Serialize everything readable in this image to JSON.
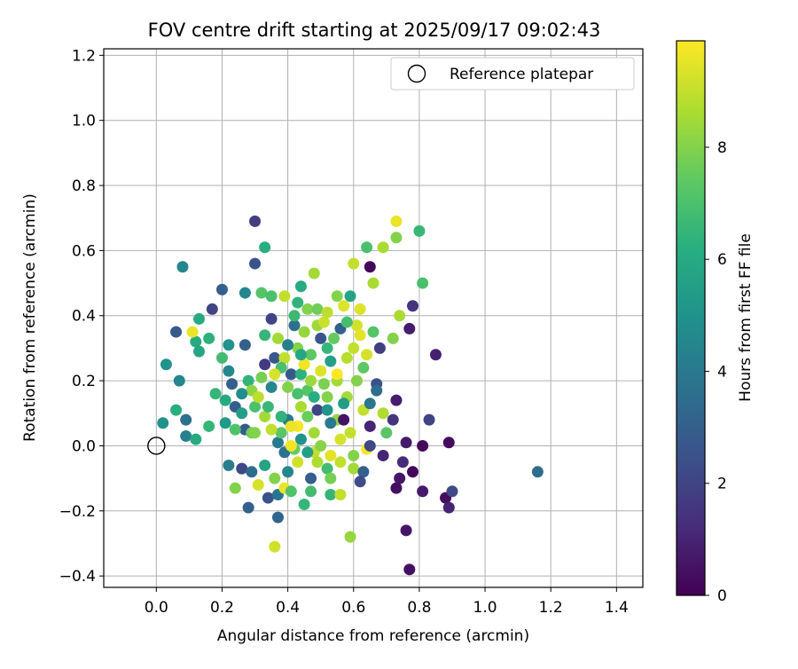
{
  "chart_data": {
    "type": "scatter",
    "title": "FOV centre drift starting at 2025/09/17 09:02:43",
    "xlabel": "Angular distance from reference (arcmin)",
    "ylabel": "Rotation from reference (arcmin)",
    "xlim": [
      -0.16,
      1.48
    ],
    "ylim": [
      -0.435,
      1.22
    ],
    "xticks": [
      0.0,
      0.2,
      0.4,
      0.6,
      0.8,
      1.0,
      1.2,
      1.4
    ],
    "xtick_labels": [
      "0.0",
      "0.2",
      "0.4",
      "0.6",
      "0.8",
      "1.0",
      "1.2",
      "1.4"
    ],
    "yticks": [
      -0.4,
      -0.2,
      0.0,
      0.2,
      0.4,
      0.6,
      0.8,
      1.0,
      1.2
    ],
    "ytick_labels": [
      "−0.4",
      "−0.2",
      "0.0",
      "0.2",
      "0.4",
      "0.6",
      "0.8",
      "1.0",
      "1.2"
    ],
    "grid": true,
    "legend": {
      "placement": "top-right",
      "label": "Reference platepar"
    },
    "reference_point": {
      "x": 0.0,
      "y": 0.0
    },
    "colorbar": {
      "label": "Hours from first FF file",
      "colormap": "viridis",
      "range": [
        0,
        9.9
      ],
      "ticks": [
        0,
        2,
        4,
        6,
        8
      ],
      "tick_labels": [
        "0",
        "2",
        "4",
        "6",
        "8"
      ]
    },
    "points": [
      {
        "x": 0.3,
        "y": 0.69,
        "t": 1.8
      },
      {
        "x": 0.73,
        "y": 0.69,
        "t": 9.6
      },
      {
        "x": 0.33,
        "y": 0.61,
        "t": 6.2
      },
      {
        "x": 0.64,
        "y": 0.61,
        "t": 7.0
      },
      {
        "x": 0.8,
        "y": 0.66,
        "t": 6.6
      },
      {
        "x": 0.69,
        "y": 0.61,
        "t": 8.6
      },
      {
        "x": 0.73,
        "y": 0.64,
        "t": 8.0
      },
      {
        "x": 0.08,
        "y": 0.55,
        "t": 4.5
      },
      {
        "x": 0.3,
        "y": 0.56,
        "t": 2.5
      },
      {
        "x": 0.65,
        "y": 0.55,
        "t": 0.2
      },
      {
        "x": 0.48,
        "y": 0.53,
        "t": 8.5
      },
      {
        "x": 0.6,
        "y": 0.56,
        "t": 9.0
      },
      {
        "x": 0.2,
        "y": 0.48,
        "t": 3.0
      },
      {
        "x": 0.27,
        "y": 0.47,
        "t": 4.5
      },
      {
        "x": 0.32,
        "y": 0.47,
        "t": 7.2
      },
      {
        "x": 0.35,
        "y": 0.46,
        "t": 7.0
      },
      {
        "x": 0.44,
        "y": 0.49,
        "t": 6.0
      },
      {
        "x": 0.66,
        "y": 0.5,
        "t": 8.6
      },
      {
        "x": 0.81,
        "y": 0.5,
        "t": 7.0
      },
      {
        "x": 0.39,
        "y": 0.46,
        "t": 9.0
      },
      {
        "x": 0.55,
        "y": 0.46,
        "t": 8.0
      },
      {
        "x": 0.13,
        "y": 0.39,
        "t": 6.0
      },
      {
        "x": 0.17,
        "y": 0.42,
        "t": 2.0
      },
      {
        "x": 0.06,
        "y": 0.35,
        "t": 2.8
      },
      {
        "x": 0.35,
        "y": 0.39,
        "t": 2.0
      },
      {
        "x": 0.46,
        "y": 0.42,
        "t": 8.0
      },
      {
        "x": 0.57,
        "y": 0.43,
        "t": 9.4
      },
      {
        "x": 0.78,
        "y": 0.43,
        "t": 1.5
      },
      {
        "x": 0.74,
        "y": 0.4,
        "t": 8.6
      },
      {
        "x": 0.12,
        "y": 0.32,
        "t": 6.0
      },
      {
        "x": 0.16,
        "y": 0.33,
        "t": 6.3
      },
      {
        "x": 0.22,
        "y": 0.31,
        "t": 5.0
      },
      {
        "x": 0.27,
        "y": 0.31,
        "t": 3.0
      },
      {
        "x": 0.33,
        "y": 0.34,
        "t": 6.5
      },
      {
        "x": 0.37,
        "y": 0.33,
        "t": 8.5
      },
      {
        "x": 0.11,
        "y": 0.35,
        "t": 9.6
      },
      {
        "x": 0.42,
        "y": 0.37,
        "t": 3.6
      },
      {
        "x": 0.49,
        "y": 0.37,
        "t": 8.4
      },
      {
        "x": 0.56,
        "y": 0.36,
        "t": 3.0
      },
      {
        "x": 0.61,
        "y": 0.37,
        "t": 9.2
      },
      {
        "x": 0.66,
        "y": 0.35,
        "t": 7.2
      },
      {
        "x": 0.77,
        "y": 0.36,
        "t": 0.8
      },
      {
        "x": 0.72,
        "y": 0.33,
        "t": 8.0
      },
      {
        "x": 0.03,
        "y": 0.25,
        "t": 5.0
      },
      {
        "x": 0.13,
        "y": 0.29,
        "t": 5.8
      },
      {
        "x": 0.2,
        "y": 0.27,
        "t": 6.8
      },
      {
        "x": 0.36,
        "y": 0.27,
        "t": 2.7
      },
      {
        "x": 0.39,
        "y": 0.27,
        "t": 9.0
      },
      {
        "x": 0.43,
        "y": 0.3,
        "t": 8.0
      },
      {
        "x": 0.52,
        "y": 0.3,
        "t": 6.5
      },
      {
        "x": 0.6,
        "y": 0.3,
        "t": 9.0
      },
      {
        "x": 0.64,
        "y": 0.28,
        "t": 9.3
      },
      {
        "x": 0.68,
        "y": 0.3,
        "t": 1.8
      },
      {
        "x": 0.85,
        "y": 0.28,
        "t": 0.9
      },
      {
        "x": 0.07,
        "y": 0.2,
        "t": 4.5
      },
      {
        "x": 0.22,
        "y": 0.23,
        "t": 4.6
      },
      {
        "x": 0.23,
        "y": 0.19,
        "t": 3.0
      },
      {
        "x": 0.28,
        "y": 0.2,
        "t": 6.4
      },
      {
        "x": 0.32,
        "y": 0.21,
        "t": 7.8
      },
      {
        "x": 0.38,
        "y": 0.24,
        "t": 7.0
      },
      {
        "x": 0.41,
        "y": 0.22,
        "t": 2.8
      },
      {
        "x": 0.44,
        "y": 0.22,
        "t": 6.3
      },
      {
        "x": 0.5,
        "y": 0.23,
        "t": 9.4
      },
      {
        "x": 0.55,
        "y": 0.2,
        "t": 8.5
      },
      {
        "x": 0.63,
        "y": 0.24,
        "t": 7.4
      },
      {
        "x": 0.67,
        "y": 0.19,
        "t": 2.4
      },
      {
        "x": 0.18,
        "y": 0.16,
        "t": 6.5
      },
      {
        "x": 0.21,
        "y": 0.14,
        "t": 6.0
      },
      {
        "x": 0.24,
        "y": 0.12,
        "t": 3.0
      },
      {
        "x": 0.29,
        "y": 0.17,
        "t": 8.2
      },
      {
        "x": 0.35,
        "y": 0.18,
        "t": 4.5
      },
      {
        "x": 0.4,
        "y": 0.18,
        "t": 8.0
      },
      {
        "x": 0.46,
        "y": 0.17,
        "t": 7.2
      },
      {
        "x": 0.52,
        "y": 0.15,
        "t": 8.0
      },
      {
        "x": 0.58,
        "y": 0.15,
        "t": 8.5
      },
      {
        "x": 0.67,
        "y": 0.17,
        "t": 3.5
      },
      {
        "x": 0.06,
        "y": 0.11,
        "t": 6.2
      },
      {
        "x": 0.26,
        "y": 0.1,
        "t": 5.5
      },
      {
        "x": 0.3,
        "y": 0.12,
        "t": 7.0
      },
      {
        "x": 0.33,
        "y": 0.09,
        "t": 8.5
      },
      {
        "x": 0.4,
        "y": 0.08,
        "t": 4.0
      },
      {
        "x": 0.43,
        "y": 0.06,
        "t": 9.8
      },
      {
        "x": 0.49,
        "y": 0.11,
        "t": 2.0
      },
      {
        "x": 0.55,
        "y": 0.08,
        "t": 8.2
      },
      {
        "x": 0.57,
        "y": 0.08,
        "t": 0.5
      },
      {
        "x": 0.63,
        "y": 0.11,
        "t": 9.0
      },
      {
        "x": 0.69,
        "y": 0.1,
        "t": 8.7
      },
      {
        "x": 0.73,
        "y": 0.14,
        "t": 0.8
      },
      {
        "x": 0.02,
        "y": 0.07,
        "t": 5.0
      },
      {
        "x": 0.09,
        "y": 0.08,
        "t": 3.6
      },
      {
        "x": 0.16,
        "y": 0.06,
        "t": 6.5
      },
      {
        "x": 0.21,
        "y": 0.07,
        "t": 5.3
      },
      {
        "x": 0.27,
        "y": 0.05,
        "t": 2.8
      },
      {
        "x": 0.29,
        "y": 0.04,
        "t": 7.7
      },
      {
        "x": 0.37,
        "y": 0.01,
        "t": 4.0
      },
      {
        "x": 0.41,
        "y": 0.06,
        "t": 9.6
      },
      {
        "x": 0.48,
        "y": 0.04,
        "t": 8.5
      },
      {
        "x": 0.53,
        "y": 0.07,
        "t": 4.0
      },
      {
        "x": 0.59,
        "y": 0.04,
        "t": 9.0
      },
      {
        "x": 0.65,
        "y": 0.06,
        "t": 1.0
      },
      {
        "x": 0.72,
        "y": 0.08,
        "t": 1.5
      },
      {
        "x": 0.83,
        "y": 0.08,
        "t": 2.0
      },
      {
        "x": 0.09,
        "y": 0.03,
        "t": 4.3
      },
      {
        "x": 0.12,
        "y": 0.02,
        "t": 6.0
      },
      {
        "x": 0.3,
        "y": 0.04,
        "t": 8.0
      },
      {
        "x": 0.39,
        "y": -0.02,
        "t": 3.7
      },
      {
        "x": 0.42,
        "y": -0.01,
        "t": 7.5
      },
      {
        "x": 0.48,
        "y": -0.02,
        "t": 9.0
      },
      {
        "x": 0.53,
        "y": -0.03,
        "t": 9.5
      },
      {
        "x": 0.6,
        "y": -0.03,
        "t": 8.0
      },
      {
        "x": 0.64,
        "y": -0.01,
        "t": 9.8
      },
      {
        "x": 0.69,
        "y": -0.03,
        "t": 1.0
      },
      {
        "x": 0.76,
        "y": 0.01,
        "t": 0.7
      },
      {
        "x": 0.81,
        "y": 0.0,
        "t": 0.2
      },
      {
        "x": 0.89,
        "y": 0.01,
        "t": 0.3
      },
      {
        "x": 0.22,
        "y": -0.06,
        "t": 4.2
      },
      {
        "x": 0.26,
        "y": -0.07,
        "t": 2.2
      },
      {
        "x": 0.29,
        "y": -0.08,
        "t": 3.5
      },
      {
        "x": 0.31,
        "y": -0.12,
        "t": 9.3
      },
      {
        "x": 0.36,
        "y": -0.1,
        "t": 8.0
      },
      {
        "x": 0.4,
        "y": -0.08,
        "t": 4.5
      },
      {
        "x": 0.43,
        "y": -0.05,
        "t": 9.2
      },
      {
        "x": 0.49,
        "y": -0.05,
        "t": 8.7
      },
      {
        "x": 0.52,
        "y": -0.07,
        "t": 6.8
      },
      {
        "x": 0.56,
        "y": -0.05,
        "t": 9.0
      },
      {
        "x": 0.6,
        "y": -0.07,
        "t": 8.5
      },
      {
        "x": 0.63,
        "y": -0.08,
        "t": 3.0
      },
      {
        "x": 0.73,
        "y": -0.13,
        "t": 0.4
      },
      {
        "x": 0.75,
        "y": -0.05,
        "t": 1.2
      },
      {
        "x": 0.78,
        "y": -0.08,
        "t": 0.2
      },
      {
        "x": 0.81,
        "y": -0.14,
        "t": 0.7
      },
      {
        "x": 0.88,
        "y": -0.16,
        "t": 0.3
      },
      {
        "x": 0.24,
        "y": -0.13,
        "t": 8.0
      },
      {
        "x": 0.28,
        "y": -0.19,
        "t": 3.0
      },
      {
        "x": 0.34,
        "y": -0.16,
        "t": 2.5
      },
      {
        "x": 0.37,
        "y": -0.15,
        "t": 3.8
      },
      {
        "x": 0.39,
        "y": -0.13,
        "t": 9.6
      },
      {
        "x": 0.45,
        "y": -0.18,
        "t": 6.5
      },
      {
        "x": 0.47,
        "y": -0.14,
        "t": 6.8
      },
      {
        "x": 0.53,
        "y": -0.15,
        "t": 6.5
      },
      {
        "x": 0.56,
        "y": -0.15,
        "t": 9.0
      },
      {
        "x": 0.62,
        "y": -0.11,
        "t": 2.3
      },
      {
        "x": 0.74,
        "y": -0.1,
        "t": 0.6
      },
      {
        "x": 0.89,
        "y": -0.19,
        "t": 1.0
      },
      {
        "x": 0.9,
        "y": -0.14,
        "t": 2.2
      },
      {
        "x": 1.16,
        "y": -0.08,
        "t": 3.5
      },
      {
        "x": 0.37,
        "y": -0.22,
        "t": 3.2
      },
      {
        "x": 0.36,
        "y": -0.31,
        "t": 9.2
      },
      {
        "x": 0.59,
        "y": -0.28,
        "t": 8.3
      },
      {
        "x": 0.76,
        "y": -0.26,
        "t": 0.6
      },
      {
        "x": 0.77,
        "y": -0.38,
        "t": 0.4
      },
      {
        "x": 0.45,
        "y": 0.25,
        "t": 9.7
      },
      {
        "x": 0.47,
        "y": 0.28,
        "t": 7.4
      },
      {
        "x": 0.5,
        "y": 0.33,
        "t": 2.6
      },
      {
        "x": 0.53,
        "y": 0.26,
        "t": 5.6
      },
      {
        "x": 0.58,
        "y": 0.27,
        "t": 8.8
      },
      {
        "x": 0.55,
        "y": 0.22,
        "t": 9.9
      },
      {
        "x": 0.51,
        "y": 0.19,
        "t": 7.9
      },
      {
        "x": 0.48,
        "y": 0.15,
        "t": 6.1
      },
      {
        "x": 0.44,
        "y": 0.12,
        "t": 8.6
      },
      {
        "x": 0.46,
        "y": 0.09,
        "t": 7.6
      },
      {
        "x": 0.52,
        "y": 0.11,
        "t": 5.1
      },
      {
        "x": 0.56,
        "y": 0.02,
        "t": 9.3
      },
      {
        "x": 0.5,
        "y": 0.0,
        "t": 8.1
      },
      {
        "x": 0.46,
        "y": -0.02,
        "t": 5.5
      },
      {
        "x": 0.41,
        "y": 0.0,
        "t": 9.7
      },
      {
        "x": 0.38,
        "y": 0.04,
        "t": 7.3
      },
      {
        "x": 0.34,
        "y": 0.12,
        "t": 6.6
      },
      {
        "x": 0.31,
        "y": 0.15,
        "t": 8.9
      },
      {
        "x": 0.26,
        "y": 0.16,
        "t": 4.8
      },
      {
        "x": 0.24,
        "y": 0.05,
        "t": 7.1
      },
      {
        "x": 0.42,
        "y": 0.4,
        "t": 6.7
      },
      {
        "x": 0.45,
        "y": 0.35,
        "t": 8.3
      },
      {
        "x": 0.49,
        "y": 0.42,
        "t": 7.7
      },
      {
        "x": 0.51,
        "y": 0.38,
        "t": 9.1
      },
      {
        "x": 0.54,
        "y": 0.33,
        "t": 7.5
      },
      {
        "x": 0.58,
        "y": 0.38,
        "t": 6.9
      },
      {
        "x": 0.62,
        "y": 0.34,
        "t": 9.5
      },
      {
        "x": 0.44,
        "y": 0.28,
        "t": 5.9
      },
      {
        "x": 0.4,
        "y": 0.31,
        "t": 4.2
      },
      {
        "x": 0.36,
        "y": 0.22,
        "t": 9.3
      },
      {
        "x": 0.33,
        "y": 0.25,
        "t": 1.7
      },
      {
        "x": 0.47,
        "y": 0.2,
        "t": 8.4
      },
      {
        "x": 0.43,
        "y": 0.16,
        "t": 7.0
      },
      {
        "x": 0.57,
        "y": 0.13,
        "t": 5.4
      },
      {
        "x": 0.61,
        "y": 0.2,
        "t": 8.0
      },
      {
        "x": 0.65,
        "y": 0.13,
        "t": 3.9
      },
      {
        "x": 0.38,
        "y": 0.09,
        "t": 6.4
      },
      {
        "x": 0.35,
        "y": 0.05,
        "t": 9.0
      },
      {
        "x": 0.44,
        "y": 0.02,
        "t": 5.0
      },
      {
        "x": 0.53,
        "y": -0.1,
        "t": 7.8
      },
      {
        "x": 0.47,
        "y": -0.1,
        "t": 2.9
      },
      {
        "x": 0.41,
        "y": -0.14,
        "t": 7.1
      },
      {
        "x": 0.33,
        "y": -0.06,
        "t": 5.7
      },
      {
        "x": 0.65,
        "y": 0.0,
        "t": 2.1
      },
      {
        "x": 0.7,
        "y": 0.04,
        "t": 7.3
      },
      {
        "x": 0.62,
        "y": 0.42,
        "t": 9.4
      },
      {
        "x": 0.59,
        "y": 0.46,
        "t": 5.7
      },
      {
        "x": 0.43,
        "y": 0.44,
        "t": 6.4
      },
      {
        "x": 0.52,
        "y": 0.41,
        "t": 8.9
      }
    ]
  }
}
